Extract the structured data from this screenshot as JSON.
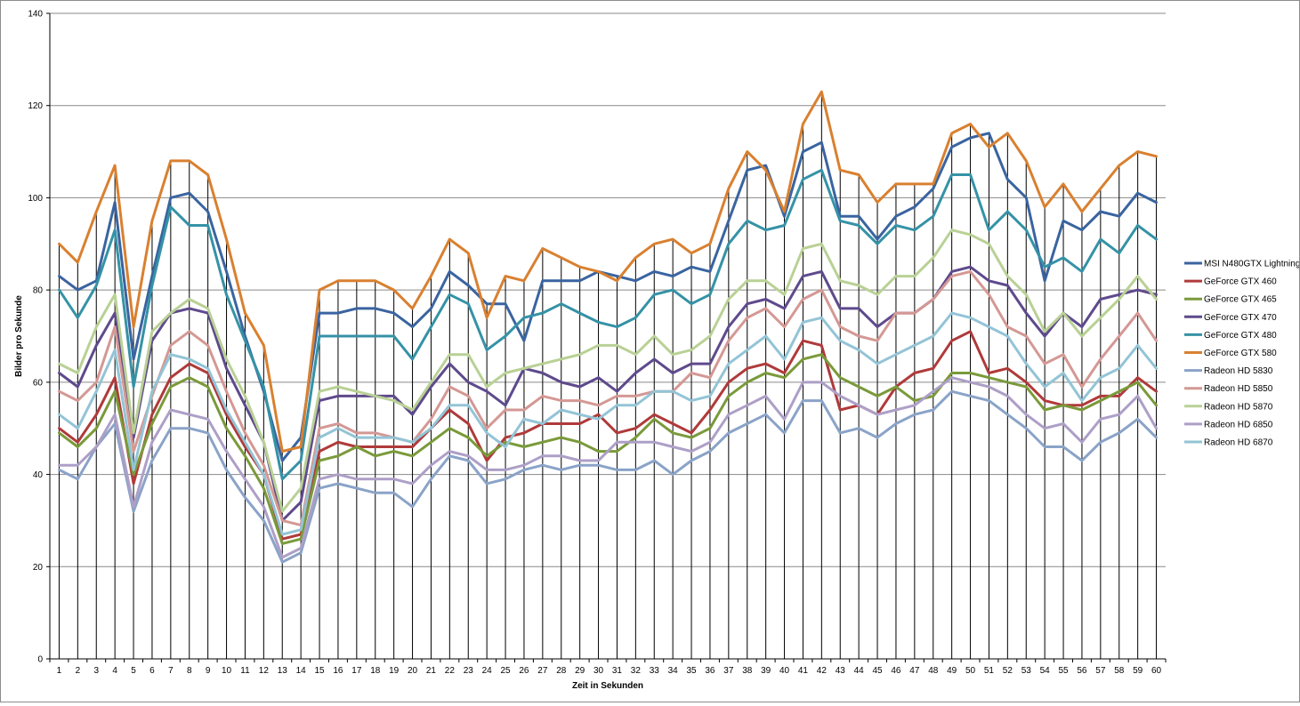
{
  "chart_data": {
    "type": "line",
    "title": "",
    "xlabel": "Zeit in Sekunden",
    "ylabel": "Bilder pro Sekunde",
    "ylim": [
      0,
      140
    ],
    "yticks": [
      0,
      20,
      40,
      60,
      80,
      100,
      120,
      140
    ],
    "grid": true,
    "legend_position": "right",
    "x": [
      1,
      2,
      3,
      4,
      5,
      6,
      7,
      8,
      9,
      10,
      11,
      12,
      13,
      14,
      15,
      16,
      17,
      18,
      19,
      20,
      21,
      22,
      23,
      24,
      25,
      26,
      27,
      28,
      29,
      30,
      31,
      32,
      33,
      34,
      35,
      36,
      37,
      38,
      39,
      40,
      41,
      42,
      43,
      44,
      45,
      46,
      47,
      48,
      49,
      50,
      51,
      52,
      53,
      54,
      55,
      56,
      57,
      58,
      59,
      60
    ],
    "series": [
      {
        "name": "MSI N480GTX Lightning",
        "color": "#3a64a0",
        "values": [
          83,
          80,
          82,
          99,
          65,
          83,
          100,
          101,
          97,
          84,
          70,
          58,
          43,
          48,
          75,
          75,
          76,
          76,
          75,
          72,
          76,
          84,
          81,
          77,
          77,
          69,
          82,
          82,
          82,
          84,
          83,
          82,
          84,
          83,
          85,
          84,
          95,
          106,
          107,
          96,
          110,
          112,
          96,
          96,
          91,
          96,
          98,
          102,
          111,
          113,
          114,
          104,
          100,
          82,
          95,
          93,
          97,
          96,
          101,
          99
        ]
      },
      {
        "name": "GeForce GTX 460",
        "color": "#b03a3a",
        "values": [
          50,
          47,
          53,
          61,
          38,
          53,
          61,
          64,
          62,
          53,
          46,
          40,
          26,
          27,
          45,
          47,
          46,
          46,
          46,
          46,
          50,
          54,
          51,
          43,
          48,
          49,
          51,
          51,
          51,
          53,
          49,
          50,
          53,
          51,
          49,
          54,
          60,
          63,
          64,
          62,
          69,
          68,
          54,
          55,
          53,
          59,
          62,
          63,
          69,
          71,
          62,
          63,
          60,
          56,
          55,
          55,
          57,
          57,
          61,
          58
        ]
      },
      {
        "name": "GeForce GTX 465",
        "color": "#7a9a3a",
        "values": [
          49,
          46,
          50,
          58,
          40,
          51,
          59,
          61,
          59,
          50,
          44,
          37,
          25,
          26,
          43,
          44,
          46,
          44,
          45,
          44,
          47,
          50,
          48,
          44,
          47,
          46,
          47,
          48,
          47,
          45,
          45,
          48,
          52,
          49,
          48,
          50,
          57,
          60,
          62,
          61,
          65,
          66,
          61,
          59,
          57,
          59,
          56,
          57,
          62,
          62,
          61,
          60,
          59,
          54,
          55,
          54,
          56,
          58,
          60,
          55
        ]
      },
      {
        "name": "GeForce GTX 470",
        "color": "#5e4a8c",
        "values": [
          62,
          59,
          68,
          75,
          48,
          69,
          75,
          76,
          75,
          63,
          55,
          47,
          30,
          34,
          56,
          57,
          57,
          57,
          57,
          53,
          59,
          64,
          60,
          58,
          55,
          63,
          62,
          60,
          59,
          61,
          58,
          62,
          65,
          62,
          64,
          64,
          72,
          77,
          78,
          76,
          83,
          84,
          76,
          76,
          72,
          75,
          75,
          78,
          84,
          85,
          82,
          81,
          75,
          70,
          75,
          72,
          78,
          79,
          80,
          79
        ]
      },
      {
        "name": "GeForce GTX 480",
        "color": "#3592a6",
        "values": [
          80,
          74,
          81,
          93,
          59,
          81,
          98,
          94,
          94,
          79,
          69,
          59,
          39,
          43,
          70,
          70,
          70,
          70,
          70,
          65,
          72,
          79,
          77,
          67,
          70,
          74,
          75,
          77,
          75,
          73,
          72,
          74,
          79,
          80,
          77,
          79,
          90,
          95,
          93,
          94,
          104,
          106,
          95,
          94,
          90,
          94,
          93,
          96,
          105,
          105,
          93,
          97,
          93,
          85,
          87,
          84,
          91,
          88,
          94,
          91
        ]
      },
      {
        "name": "GeForce GTX 580",
        "color": "#d98030",
        "values": [
          90,
          86,
          97,
          107,
          72,
          95,
          108,
          108,
          105,
          91,
          75,
          68,
          45,
          46,
          80,
          82,
          82,
          82,
          80,
          76,
          83,
          91,
          88,
          74,
          83,
          82,
          89,
          87,
          85,
          84,
          82,
          87,
          90,
          91,
          88,
          90,
          102,
          110,
          106,
          97,
          116,
          123,
          106,
          105,
          99,
          103,
          103,
          103,
          114,
          116,
          111,
          114,
          108,
          98,
          103,
          97,
          102,
          107,
          110,
          109
        ]
      },
      {
        "name": "Radeon HD 5830",
        "color": "#8aa3c8",
        "values": [
          41,
          39,
          46,
          51,
          32,
          43,
          50,
          50,
          49,
          41,
          35,
          30,
          21,
          23,
          37,
          38,
          37,
          36,
          36,
          33,
          39,
          44,
          43,
          38,
          39,
          41,
          42,
          41,
          42,
          42,
          41,
          41,
          43,
          40,
          43,
          45,
          49,
          51,
          53,
          49,
          56,
          56,
          49,
          50,
          48,
          51,
          53,
          54,
          58,
          57,
          56,
          53,
          50,
          46,
          46,
          43,
          47,
          49,
          52,
          48
        ]
      },
      {
        "name": "Radeon HD 5850",
        "color": "#d49894",
        "values": [
          58,
          56,
          60,
          72,
          45,
          57,
          68,
          71,
          68,
          58,
          49,
          42,
          30,
          29,
          50,
          51,
          49,
          49,
          48,
          47,
          52,
          59,
          57,
          50,
          54,
          54,
          57,
          56,
          56,
          55,
          57,
          57,
          58,
          58,
          62,
          61,
          69,
          74,
          76,
          72,
          78,
          80,
          72,
          70,
          69,
          75,
          75,
          78,
          83,
          84,
          79,
          72,
          70,
          64,
          66,
          59,
          65,
          70,
          75,
          69
        ]
      },
      {
        "name": "Radeon HD 5870",
        "color": "#b9d195",
        "values": [
          64,
          62,
          72,
          79,
          49,
          71,
          75,
          78,
          76,
          65,
          57,
          47,
          32,
          37,
          58,
          59,
          58,
          57,
          56,
          54,
          60,
          66,
          66,
          59,
          62,
          63,
          64,
          65,
          66,
          68,
          68,
          66,
          70,
          66,
          67,
          70,
          78,
          82,
          82,
          79,
          89,
          90,
          82,
          81,
          79,
          83,
          83,
          87,
          93,
          92,
          90,
          83,
          79,
          71,
          75,
          70,
          74,
          78,
          83,
          78
        ]
      },
      {
        "name": "Radeon HD 6850",
        "color": "#ad9fc7",
        "values": [
          42,
          42,
          46,
          53,
          33,
          47,
          54,
          53,
          52,
          45,
          39,
          33,
          22,
          24,
          39,
          40,
          39,
          39,
          39,
          38,
          42,
          45,
          44,
          41,
          41,
          42,
          44,
          44,
          43,
          43,
          47,
          47,
          47,
          46,
          45,
          47,
          53,
          55,
          57,
          52,
          60,
          60,
          57,
          55,
          53,
          54,
          55,
          58,
          61,
          60,
          59,
          57,
          53,
          50,
          51,
          47,
          52,
          53,
          57,
          50
        ]
      },
      {
        "name": "Radeon HD 6870",
        "color": "#93c4d6",
        "values": [
          53,
          50,
          58,
          67,
          41,
          58,
          66,
          65,
          63,
          54,
          47,
          40,
          27,
          28,
          48,
          50,
          48,
          48,
          48,
          47,
          50,
          55,
          55,
          49,
          46,
          52,
          51,
          54,
          53,
          52,
          55,
          55,
          58,
          58,
          56,
          57,
          64,
          67,
          70,
          65,
          73,
          74,
          69,
          67,
          64,
          66,
          68,
          70,
          75,
          74,
          72,
          70,
          64,
          59,
          62,
          56,
          61,
          63,
          68,
          63
        ]
      }
    ]
  }
}
